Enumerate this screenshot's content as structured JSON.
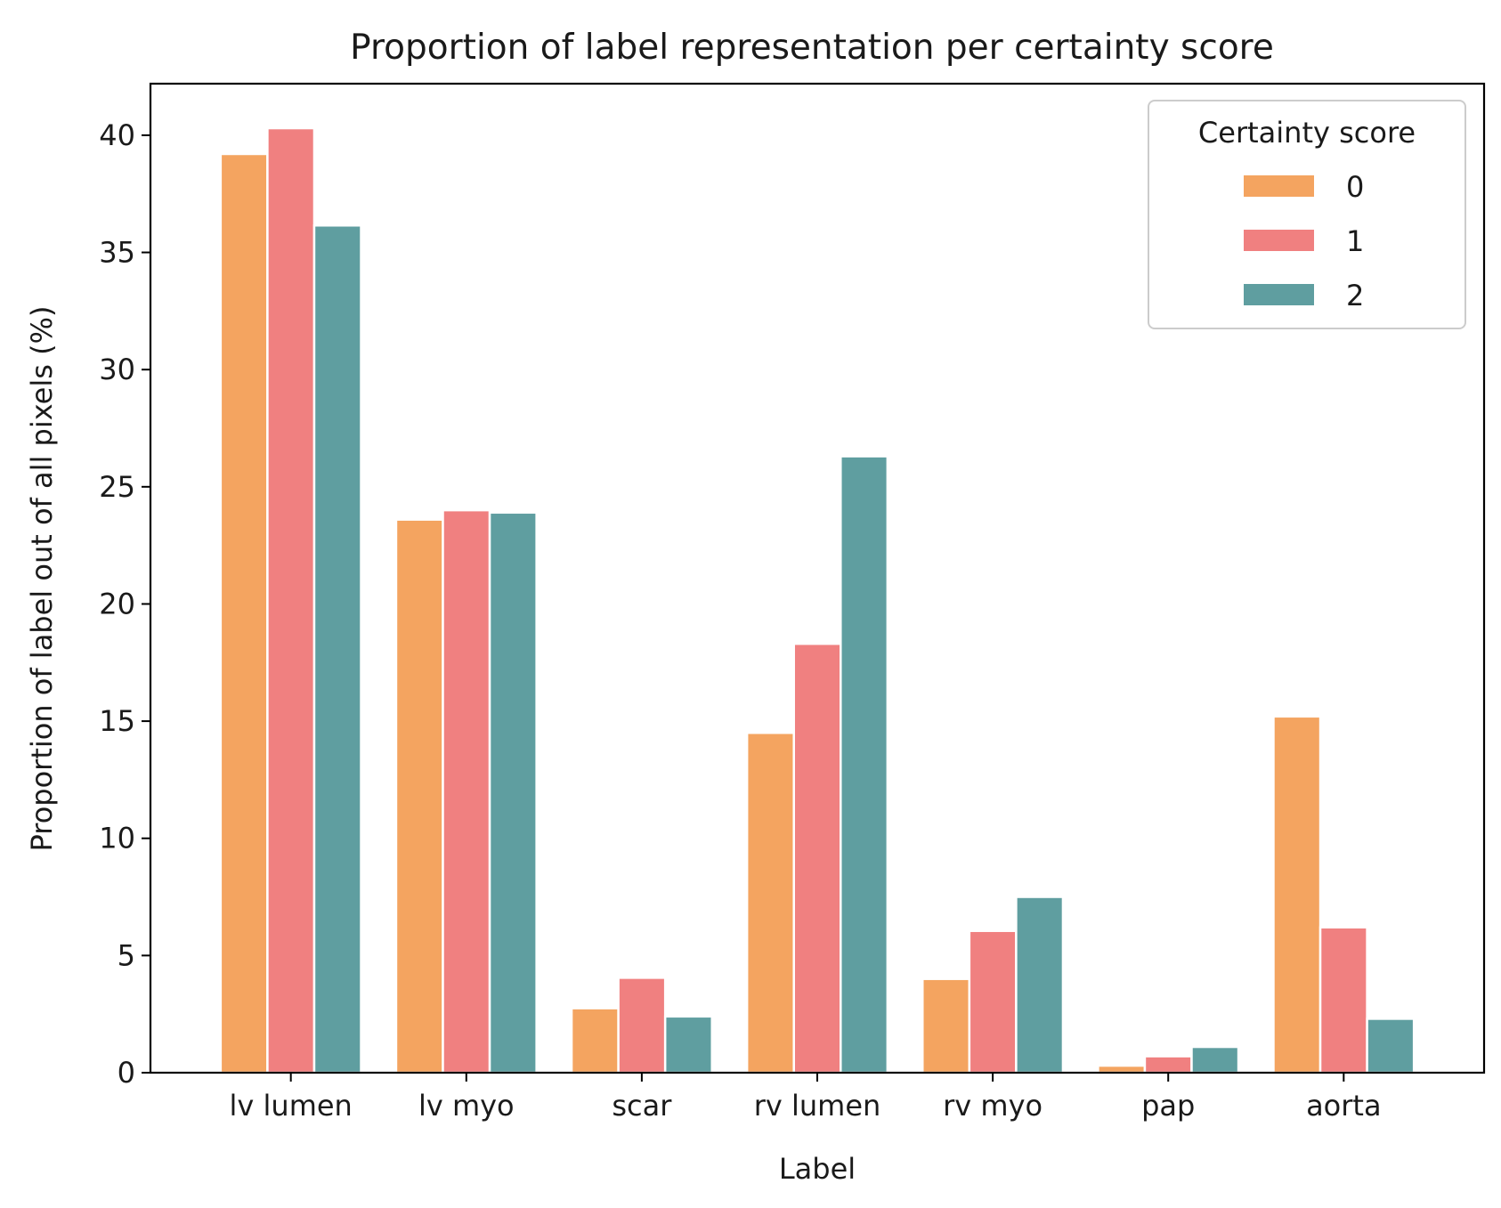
{
  "chart_data": {
    "type": "bar",
    "title": "Proportion of label representation per certainty score",
    "xlabel": "Label",
    "ylabel": "Proportion of label out of all pixels (%)",
    "categories": [
      "lv lumen",
      "lv myo",
      "scar",
      "rv lumen",
      "rv myo",
      "pap",
      "aorta"
    ],
    "ylim": [
      0,
      42.2
    ],
    "yticks": [
      0,
      5,
      10,
      15,
      20,
      25,
      30,
      35,
      40
    ],
    "grid": false,
    "legend": {
      "title": "Certainty score",
      "placement": "top-right"
    },
    "series": [
      {
        "name": "0",
        "color": "#f4a460",
        "values": [
          39.2,
          23.6,
          2.75,
          14.5,
          4.0,
          0.3,
          15.2
        ]
      },
      {
        "name": "1",
        "color": "#f08080",
        "values": [
          40.3,
          24.0,
          4.05,
          18.3,
          6.05,
          0.7,
          6.2
        ]
      },
      {
        "name": "2",
        "color": "#5f9ea0",
        "values": [
          36.15,
          23.9,
          2.4,
          26.3,
          7.5,
          1.1,
          2.3
        ]
      }
    ]
  }
}
